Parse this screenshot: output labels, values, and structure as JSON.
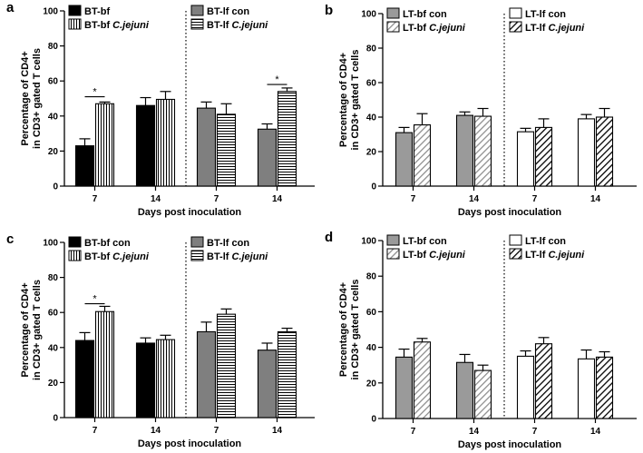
{
  "chart_data": [
    {
      "panel": "a",
      "type": "bar",
      "ylabel": "Percentage of CD4+ in CD3+ gated T cells",
      "xlabel": "Days post inoculation",
      "ylim": [
        0,
        100
      ],
      "yticks": [
        0,
        20,
        40,
        60,
        80,
        100
      ],
      "groups": [
        {
          "label": "7",
          "bars": [
            {
              "series": "BT-bf con",
              "value": 23,
              "err": 4,
              "fill": "#000000",
              "pattern": "solid"
            },
            {
              "series": "BT-bf C.jejuni",
              "value": 47,
              "err": 1,
              "fill": "#ffffff",
              "pattern": "vlines"
            }
          ]
        },
        {
          "label": "14",
          "bars": [
            {
              "series": "BT-bf con",
              "value": 46,
              "err": 4.5,
              "fill": "#000000",
              "pattern": "solid"
            },
            {
              "series": "BT-bf C.jejuni",
              "value": 49.5,
              "err": 4.5,
              "fill": "#ffffff",
              "pattern": "vlines"
            }
          ]
        },
        {
          "label": "7",
          "bars": [
            {
              "series": "BT-lf con",
              "value": 44.5,
              "err": 3.5,
              "fill": "#7f7f7f",
              "pattern": "solid"
            },
            {
              "series": "BT-lf C.jejuni",
              "value": 41,
              "err": 6,
              "fill": "#ffffff",
              "pattern": "hlines"
            }
          ]
        },
        {
          "label": "14",
          "bars": [
            {
              "series": "BT-lf con",
              "value": 32.5,
              "err": 3,
              "fill": "#7f7f7f",
              "pattern": "solid"
            },
            {
              "series": "BT-lf C.jejuni",
              "value": 54,
              "err": 2,
              "fill": "#ffffff",
              "pattern": "hlines"
            }
          ]
        }
      ],
      "significance": [
        {
          "group": 0,
          "label": "*",
          "level": 51
        },
        {
          "group": 3,
          "label": "*",
          "level": 58
        }
      ],
      "legend": [
        {
          "name": "BT-bf",
          "italic": "",
          "pattern": "solid",
          "fill": "#000000",
          "col": 0,
          "row": 0
        },
        {
          "name": "BT-bf ",
          "italic": "C.jejuni",
          "pattern": "vlines",
          "fill": "#ffffff",
          "col": 0,
          "row": 1
        },
        {
          "name": "BT-lf con",
          "italic": "",
          "pattern": "solid",
          "fill": "#7f7f7f",
          "col": 1,
          "row": 0
        },
        {
          "name": "BT-lf ",
          "italic": "C.jejuni",
          "pattern": "hlines",
          "fill": "#ffffff",
          "col": 1,
          "row": 1
        }
      ]
    },
    {
      "panel": "b",
      "type": "bar",
      "ylabel": "Percentage of CD4+ in CD3+ gated T cells",
      "xlabel": "Days post inoculation",
      "ylim": [
        0,
        100
      ],
      "yticks": [
        0,
        20,
        40,
        60,
        80,
        100
      ],
      "groups": [
        {
          "label": "7",
          "bars": [
            {
              "series": "LT-bf con",
              "value": 31,
              "err": 3,
              "fill": "#9a9a9a",
              "pattern": "solid"
            },
            {
              "series": "LT-bf C.jejuni",
              "value": 35.5,
              "err": 6.5,
              "fill": "#ffffff",
              "pattern": "diag"
            }
          ]
        },
        {
          "label": "14",
          "bars": [
            {
              "series": "LT-bf con",
              "value": 41,
              "err": 2,
              "fill": "#9a9a9a",
              "pattern": "solid"
            },
            {
              "series": "LT-bf C.jejuni",
              "value": 40.5,
              "err": 4.5,
              "fill": "#ffffff",
              "pattern": "diag"
            }
          ]
        },
        {
          "label": "7",
          "bars": [
            {
              "series": "LT-lf con",
              "value": 31.5,
              "err": 2,
              "fill": "#ffffff",
              "pattern": "solid"
            },
            {
              "series": "LT-lf C.jejuni",
              "value": 34,
              "err": 5,
              "fill": "#ffffff",
              "pattern": "diagbold"
            }
          ]
        },
        {
          "label": "14",
          "bars": [
            {
              "series": "LT-lf con",
              "value": 39,
              "err": 2.5,
              "fill": "#ffffff",
              "pattern": "solid"
            },
            {
              "series": "LT-lf C.jejuni",
              "value": 40,
              "err": 5,
              "fill": "#ffffff",
              "pattern": "diagbold"
            }
          ]
        }
      ],
      "significance": [],
      "legend": [
        {
          "name": "LT-bf con",
          "italic": "",
          "pattern": "solid",
          "fill": "#9a9a9a",
          "col": 0,
          "row": 0
        },
        {
          "name": "LT-bf ",
          "italic": "C.jejuni",
          "pattern": "diag",
          "fill": "#ffffff",
          "col": 0,
          "row": 1
        },
        {
          "name": "LT-lf con",
          "italic": "",
          "pattern": "solid",
          "fill": "#ffffff",
          "col": 1,
          "row": 0
        },
        {
          "name": "LT-lf ",
          "italic": "C.jejuni",
          "pattern": "diagbold",
          "fill": "#ffffff",
          "col": 1,
          "row": 1
        }
      ]
    },
    {
      "panel": "c",
      "type": "bar",
      "ylabel": "Percentage of CD4+ in CD3+ gated T cells",
      "xlabel": "Days post inoculation",
      "ylim": [
        0,
        100
      ],
      "yticks": [
        0,
        20,
        40,
        60,
        80,
        100
      ],
      "groups": [
        {
          "label": "7",
          "bars": [
            {
              "series": "BT-bf con",
              "value": 44,
              "err": 4.5,
              "fill": "#000000",
              "pattern": "solid"
            },
            {
              "series": "BT-bf C.jejuni",
              "value": 60.5,
              "err": 3,
              "fill": "#ffffff",
              "pattern": "vlines"
            }
          ]
        },
        {
          "label": "14",
          "bars": [
            {
              "series": "BT-bf con",
              "value": 42.5,
              "err": 3,
              "fill": "#000000",
              "pattern": "solid"
            },
            {
              "series": "BT-bf C.jejuni",
              "value": 44.5,
              "err": 2.5,
              "fill": "#ffffff",
              "pattern": "vlines"
            }
          ]
        },
        {
          "label": "7",
          "bars": [
            {
              "series": "BT-lf con",
              "value": 49,
              "err": 5.5,
              "fill": "#7f7f7f",
              "pattern": "solid"
            },
            {
              "series": "BT-lf C.jejuni",
              "value": 59,
              "err": 3,
              "fill": "#ffffff",
              "pattern": "hlines"
            }
          ]
        },
        {
          "label": "14",
          "bars": [
            {
              "series": "BT-lf con",
              "value": 38.5,
              "err": 4,
              "fill": "#7f7f7f",
              "pattern": "solid"
            },
            {
              "series": "BT-lf C.jejuni",
              "value": 49,
              "err": 2,
              "fill": "#ffffff",
              "pattern": "hlines"
            }
          ]
        }
      ],
      "significance": [
        {
          "group": 0,
          "label": "*",
          "level": 65
        }
      ],
      "legend": [
        {
          "name": "BT-bf con",
          "italic": "",
          "pattern": "solid",
          "fill": "#000000",
          "col": 0,
          "row": 0
        },
        {
          "name": "BT-bf ",
          "italic": "C.jejuni",
          "pattern": "vlines",
          "fill": "#ffffff",
          "col": 0,
          "row": 1
        },
        {
          "name": "BT-lf con",
          "italic": "",
          "pattern": "solid",
          "fill": "#7f7f7f",
          "col": 1,
          "row": 0
        },
        {
          "name": "BT-lf ",
          "italic": "C.jejuni",
          "pattern": "hlines",
          "fill": "#ffffff",
          "col": 1,
          "row": 1
        }
      ]
    },
    {
      "panel": "d",
      "type": "bar",
      "ylabel": "Percentage of CD4+ in CD3+ gated T cells",
      "xlabel": "Days post inoculation",
      "ylim": [
        0,
        100
      ],
      "yticks": [
        0,
        20,
        40,
        60,
        80,
        100
      ],
      "groups": [
        {
          "label": "7",
          "bars": [
            {
              "series": "LT-bf con",
              "value": 34.5,
              "err": 4.5,
              "fill": "#9a9a9a",
              "pattern": "solid"
            },
            {
              "series": "LT-bf C.jejuni",
              "value": 43,
              "err": 2,
              "fill": "#ffffff",
              "pattern": "diag"
            }
          ]
        },
        {
          "label": "14",
          "bars": [
            {
              "series": "LT-bf con",
              "value": 31.5,
              "err": 4.5,
              "fill": "#9a9a9a",
              "pattern": "solid"
            },
            {
              "series": "LT-bf C.jejuni",
              "value": 27,
              "err": 3,
              "fill": "#ffffff",
              "pattern": "diag"
            }
          ]
        },
        {
          "label": "7",
          "bars": [
            {
              "series": "LT-lf con",
              "value": 35,
              "err": 3,
              "fill": "#ffffff",
              "pattern": "solid"
            },
            {
              "series": "LT-lf C.jejuni",
              "value": 42,
              "err": 3.5,
              "fill": "#ffffff",
              "pattern": "diagbold"
            }
          ]
        },
        {
          "label": "14",
          "bars": [
            {
              "series": "LT-lf con",
              "value": 33.5,
              "err": 5,
              "fill": "#ffffff",
              "pattern": "solid"
            },
            {
              "series": "LT-lf C.jejuni",
              "value": 34.5,
              "err": 3,
              "fill": "#ffffff",
              "pattern": "diagbold"
            }
          ]
        }
      ],
      "significance": [],
      "legend": [
        {
          "name": "LT-bf con",
          "italic": "",
          "pattern": "solid",
          "fill": "#9a9a9a",
          "col": 0,
          "row": 0
        },
        {
          "name": "LT-bf ",
          "italic": "C.jejuni",
          "pattern": "diag",
          "fill": "#ffffff",
          "col": 0,
          "row": 1
        },
        {
          "name": "LT-lf con",
          "italic": "",
          "pattern": "solid",
          "fill": "#ffffff",
          "col": 1,
          "row": 0
        },
        {
          "name": "LT-lf ",
          "italic": "C.jejuni",
          "pattern": "diagbold",
          "fill": "#ffffff",
          "col": 1,
          "row": 1
        }
      ]
    }
  ]
}
